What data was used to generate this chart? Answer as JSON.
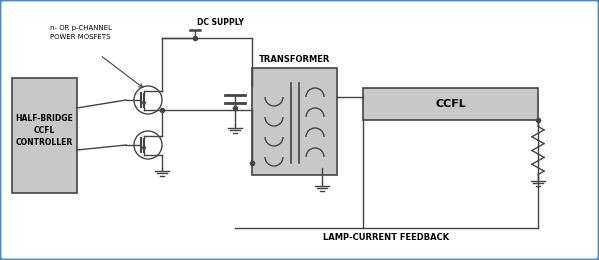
{
  "bg_color": "#ffffff",
  "border_color": "#4a8bc4",
  "line_color": "#444444",
  "box_fill": "#c8c8c8",
  "box_border": "#444444",
  "labels": {
    "mosfet_label1": "n- OR p-CHANNEL",
    "mosfet_label2": "POWER MOSFETS",
    "dc_supply": "DC SUPPLY",
    "transformer": "TRANSFORMER",
    "ccfl_tube": "CCFL",
    "controller1": "HALF-BRIDGE",
    "controller2": "CCFL",
    "controller3": "CONTROLLER",
    "feedback": "LAMP-CURRENT FEEDBACK"
  },
  "figsize": [
    5.99,
    2.6
  ],
  "dpi": 100
}
